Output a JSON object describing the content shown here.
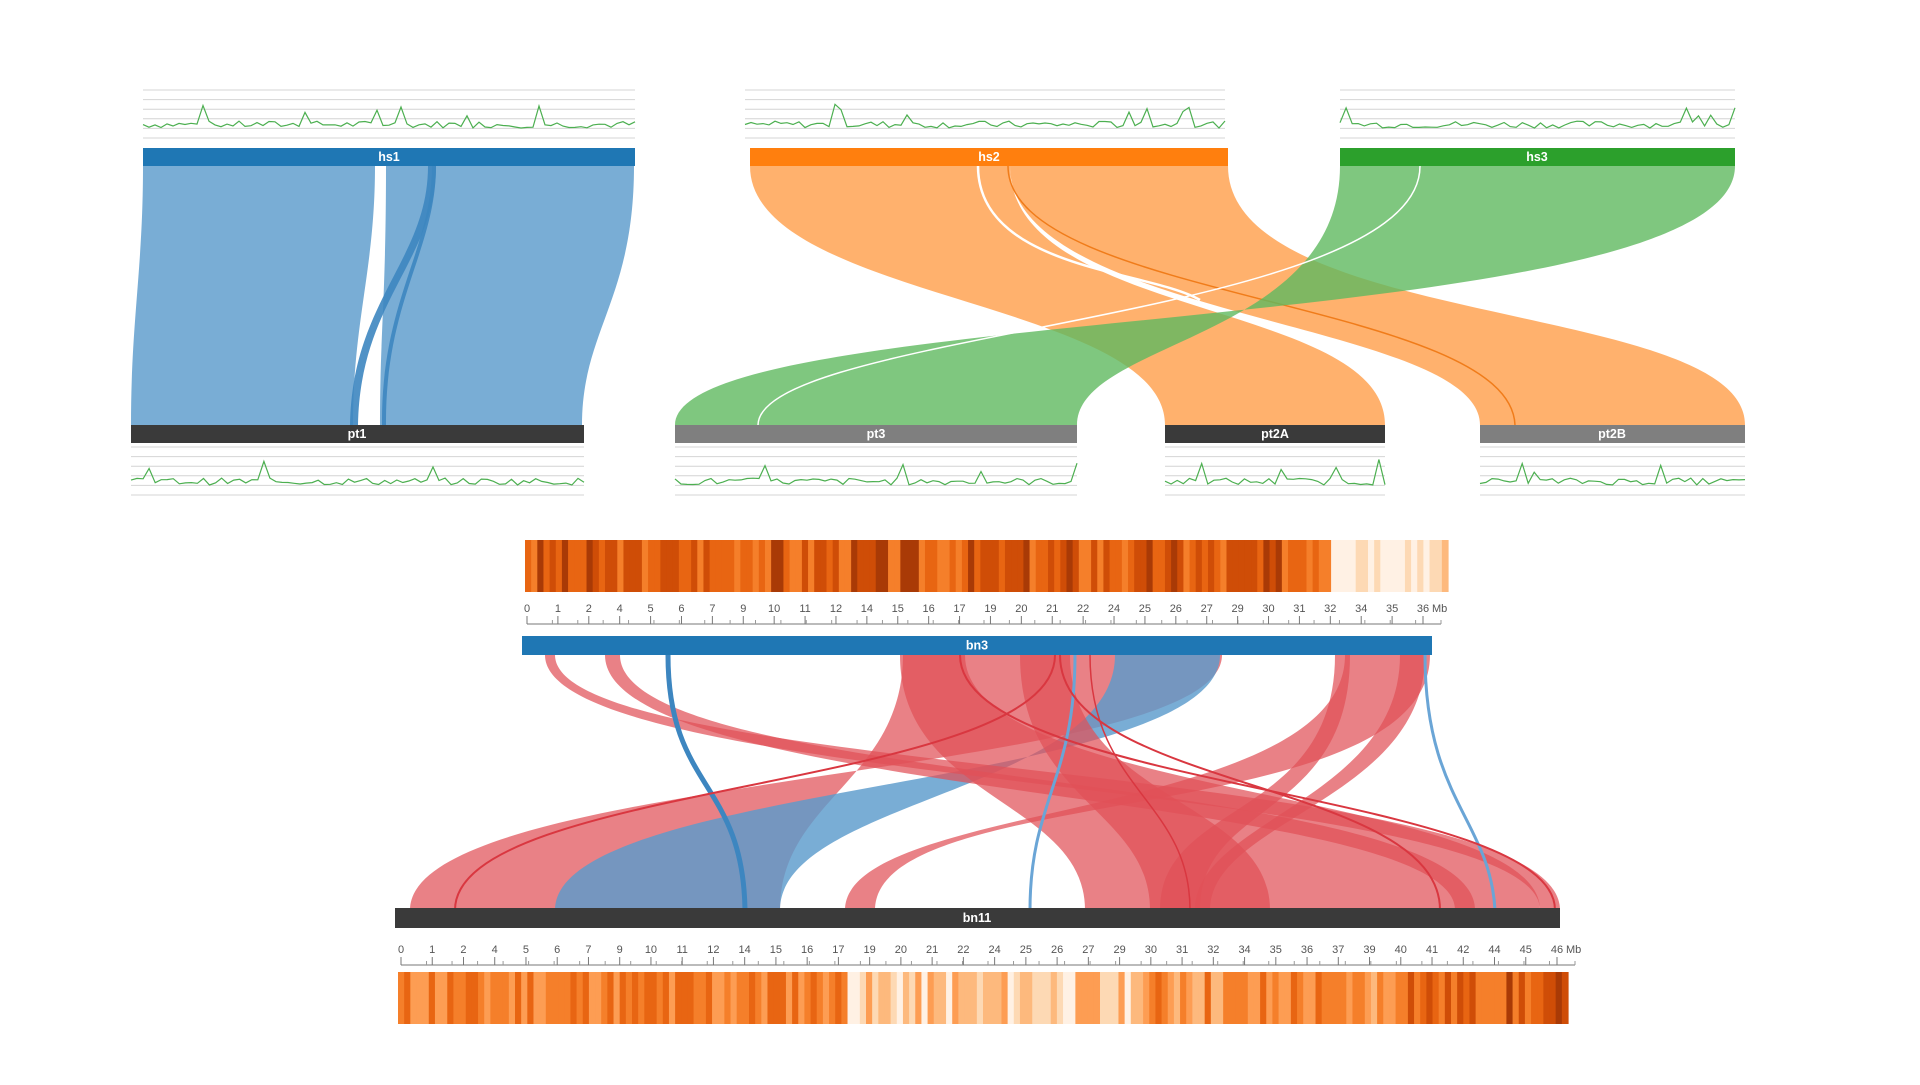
{
  "colors": {
    "hs1": "#1f77b4",
    "hs2": "#ff7f0e",
    "hs3": "#2ca02c",
    "bn3": "#1f77b4",
    "bn11": "#3a3a3a",
    "pt1": "#3a3a3a",
    "pt3": "#7f7f7f",
    "pt2A": "#3a3a3a",
    "pt2B": "#7f7f7f",
    "link_blue": "#5b9bcc",
    "link_orange": "#ffa04d",
    "link_green": "#5fb95f",
    "link_red": "#e05058",
    "track_line": "#4caf50",
    "track_grid": "#cccccc",
    "axis": "#666666"
  },
  "top_panel": {
    "chromosomes": {
      "hs1": "hs1",
      "hs2": "hs2",
      "hs3": "hs3",
      "pt1": "pt1",
      "pt3": "pt3",
      "pt2A": "pt2A",
      "pt2B": "pt2B"
    }
  },
  "bottom_panel": {
    "top_chromosome": "bn3",
    "bottom_chromosome": "bn11",
    "bn3_axis": {
      "ticks": [
        "0",
        "1",
        "2",
        "4",
        "5",
        "6",
        "7",
        "9",
        "10",
        "11",
        "12",
        "14",
        "15",
        "16",
        "17",
        "19",
        "20",
        "21",
        "22",
        "24",
        "25",
        "26",
        "27",
        "29",
        "30",
        "31",
        "32",
        "34",
        "35",
        "36"
      ],
      "unit": "Mb"
    },
    "bn11_axis": {
      "ticks": [
        "0",
        "1",
        "2",
        "4",
        "5",
        "6",
        "7",
        "9",
        "10",
        "11",
        "12",
        "14",
        "15",
        "16",
        "17",
        "19",
        "20",
        "21",
        "22",
        "24",
        "25",
        "26",
        "27",
        "29",
        "30",
        "31",
        "32",
        "34",
        "35",
        "36",
        "37",
        "39",
        "40",
        "41",
        "42",
        "44",
        "45",
        "46"
      ],
      "unit": "Mb"
    }
  }
}
